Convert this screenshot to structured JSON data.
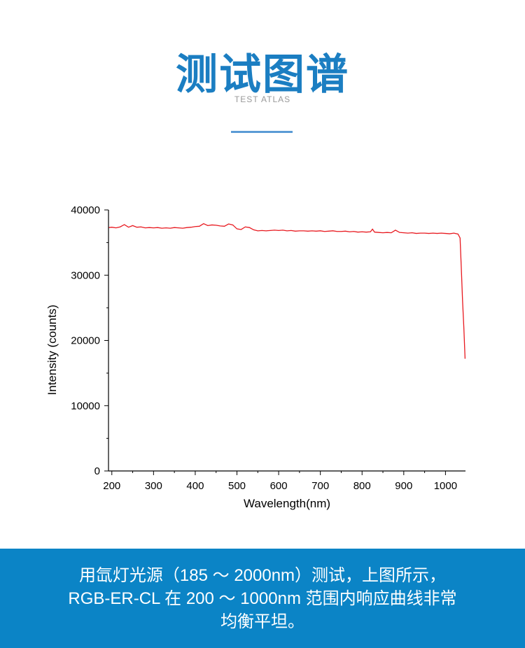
{
  "header": {
    "title": "测试图谱",
    "subtitle": "TEST ATLAS"
  },
  "chart_data": {
    "type": "line",
    "x_label": "Wavelength(nm)",
    "y_label": "Intensity (counts)",
    "xlim": [
      192,
      1048
    ],
    "ylim": [
      0,
      40000
    ],
    "xticks": [
      200,
      300,
      400,
      500,
      600,
      700,
      800,
      900,
      1000
    ],
    "yticks": [
      0,
      10000,
      20000,
      30000,
      40000
    ],
    "x": [
      193,
      200,
      210,
      220,
      230,
      240,
      250,
      260,
      270,
      280,
      290,
      300,
      310,
      320,
      330,
      340,
      350,
      360,
      370,
      380,
      390,
      400,
      410,
      420,
      430,
      440,
      450,
      460,
      470,
      480,
      490,
      500,
      510,
      520,
      530,
      540,
      550,
      560,
      570,
      580,
      590,
      600,
      610,
      620,
      630,
      640,
      650,
      660,
      670,
      680,
      690,
      700,
      710,
      720,
      730,
      740,
      750,
      760,
      770,
      780,
      790,
      800,
      810,
      820,
      825,
      830,
      840,
      850,
      860,
      870,
      880,
      890,
      900,
      910,
      920,
      930,
      940,
      950,
      960,
      970,
      980,
      990,
      1000,
      1010,
      1020,
      1030,
      1035,
      1038,
      1041,
      1044,
      1047
    ],
    "series": [
      {
        "color": "#e8191f",
        "values": [
          37300,
          37350,
          37250,
          37400,
          37750,
          37350,
          37600,
          37350,
          37400,
          37250,
          37300,
          37250,
          37300,
          37200,
          37250,
          37200,
          37300,
          37250,
          37200,
          37300,
          37350,
          37450,
          37500,
          37900,
          37600,
          37700,
          37650,
          37550,
          37500,
          37850,
          37700,
          37100,
          37000,
          37400,
          37300,
          36950,
          36800,
          36850,
          36800,
          36850,
          36900,
          36850,
          36900,
          36800,
          36850,
          36750,
          36800,
          36800,
          36750,
          36800,
          36750,
          36800,
          36700,
          36750,
          36800,
          36700,
          36700,
          36750,
          36650,
          36700,
          36600,
          36650,
          36600,
          36650,
          37050,
          36600,
          36550,
          36500,
          36550,
          36500,
          36900,
          36550,
          36500,
          36450,
          36500,
          36400,
          36450,
          36450,
          36400,
          36450,
          36400,
          36450,
          36400,
          36350,
          36450,
          36300,
          35700,
          31000,
          26000,
          22000,
          17200
        ]
      }
    ]
  },
  "footer": {
    "lines": [
      "用氙灯光源（185 ～ 2000nm）测试，上图所示，",
      "RGB-ER-CL 在 200 ～ 1000nm 范围内响应曲线非常",
      "均衡平坦。"
    ]
  }
}
